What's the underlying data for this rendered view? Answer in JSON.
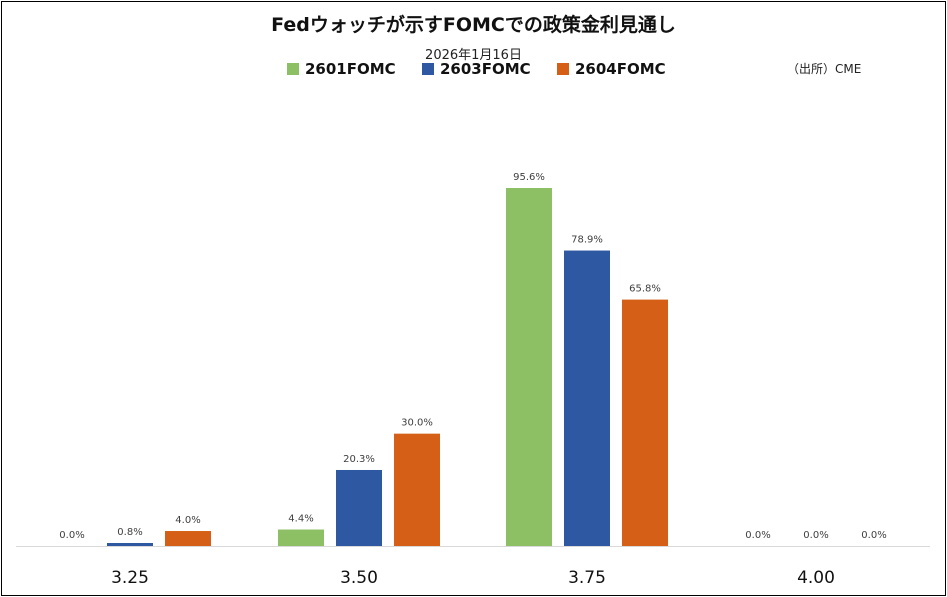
{
  "chart_data": {
    "type": "bar",
    "title": "Fedウォッチが示すFOMCでの政策金利見通し",
    "subtitle": "2026年1月16日",
    "source": "（出所）CME",
    "categories": [
      "3.25",
      "3.50",
      "3.75",
      "4.00"
    ],
    "series": [
      {
        "name": "2601FOMC",
        "color": "#8dc064",
        "values": [
          0.0,
          4.4,
          95.6,
          0.0
        ],
        "labels": [
          "0.0%",
          "4.4%",
          "95.6%",
          "0.0%"
        ]
      },
      {
        "name": "2603FOMC",
        "color": "#2f58a2",
        "values": [
          0.8,
          20.3,
          78.9,
          0.0
        ],
        "labels": [
          "0.8%",
          "20.3%",
          "78.9%",
          "0.0%"
        ]
      },
      {
        "name": "2604FOMC",
        "color": "#d55f16",
        "values": [
          4.0,
          30.0,
          65.8,
          0.0
        ],
        "labels": [
          "4.0%",
          "30.0%",
          "65.8%",
          "0.0%"
        ]
      }
    ],
    "ylim": [
      0,
      100
    ],
    "grid": false,
    "legend": "top"
  }
}
